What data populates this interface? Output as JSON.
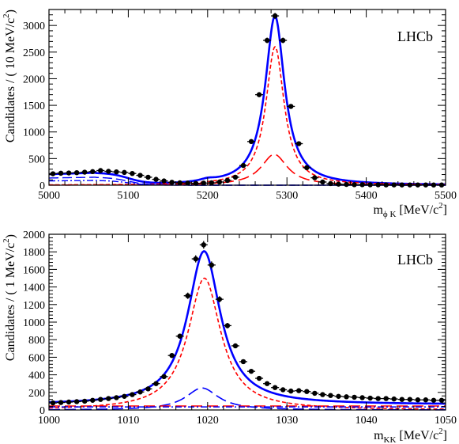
{
  "chart_data": [
    {
      "type": "line",
      "experiment_label": "LHCb",
      "xlabel": {
        "main": "m",
        "sub": "ϕ K",
        "unit_pre": "[MeV/c",
        "unit_sup": "2",
        "unit_post": "]"
      },
      "ylabel": {
        "pre": "Candidates / ( 10 MeV/c",
        "sup": "2",
        "post": ")"
      },
      "xlim": [
        5000,
        5500
      ],
      "ylim": [
        0,
        3300
      ],
      "xticks": [
        5000,
        5100,
        5200,
        5300,
        5400,
        5500
      ],
      "yticks": [
        0,
        500,
        1000,
        1500,
        2000,
        2500,
        3000
      ],
      "data_points": {
        "x": [
          5005,
          5015,
          5025,
          5035,
          5045,
          5055,
          5065,
          5075,
          5085,
          5095,
          5105,
          5115,
          5125,
          5135,
          5145,
          5155,
          5165,
          5175,
          5185,
          5195,
          5205,
          5215,
          5225,
          5235,
          5245,
          5255,
          5265,
          5275,
          5285,
          5295,
          5305,
          5315,
          5325,
          5335,
          5345,
          5355,
          5365,
          5375,
          5385,
          5395,
          5405,
          5415,
          5425,
          5435,
          5445,
          5455,
          5465,
          5475,
          5485,
          5495
        ],
        "y": [
          215,
          225,
          230,
          235,
          245,
          255,
          275,
          260,
          250,
          240,
          220,
          185,
          150,
          110,
          80,
          55,
          45,
          40,
          35,
          40,
          45,
          60,
          90,
          150,
          370,
          820,
          1700,
          2720,
          3180,
          2720,
          1480,
          780,
          330,
          140,
          60,
          30,
          20,
          15,
          10,
          10,
          8,
          8,
          6,
          6,
          5,
          5,
          5,
          5,
          4,
          4
        ],
        "yerr": [
          15,
          15,
          15,
          15,
          16,
          16,
          17,
          16,
          16,
          16,
          15,
          14,
          12,
          11,
          9,
          8,
          7,
          7,
          6,
          7,
          7,
          8,
          10,
          12,
          19,
          29,
          41,
          52,
          56,
          52,
          39,
          28,
          18,
          12,
          8,
          6,
          5,
          4,
          3,
          3,
          3,
          3,
          3,
          3,
          2,
          2,
          2,
          2,
          2,
          2
        ]
      },
      "components": [
        {
          "style": "total",
          "color": "#0000ff",
          "dash": "",
          "width": 2.6,
          "model": {
            "base": 0,
            "peaks": [
              {
                "A": 2600,
                "mu": 5285,
                "s": 14
              },
              {
                "A": 580,
                "mu": 5284,
                "s": 20
              },
              {
                "A": 42,
                "mu": 5200,
                "s": 12
              }
            ],
            "bumps": [
              {
                "A": 220,
                "mu": 5060,
                "s": 55,
                "tail": 5100
              }
            ]
          }
        },
        {
          "style": "signal-narrow",
          "color": "#ff0000",
          "dash": "5,3",
          "width": 1.6,
          "model": {
            "base": 0,
            "peaks": [
              {
                "A": 2600,
                "mu": 5285,
                "s": 14
              }
            ],
            "bumps": []
          }
        },
        {
          "style": "signal-wide",
          "color": "#ff0000",
          "dash": "14,6",
          "width": 1.6,
          "model": {
            "base": 0,
            "peaks": [
              {
                "A": 580,
                "mu": 5284,
                "s": 20
              }
            ],
            "bumps": []
          }
        },
        {
          "style": "background-a",
          "color": "#0000ff",
          "dash": "12,5",
          "width": 1.4,
          "model": {
            "base": 0,
            "peaks": [],
            "bumps": [
              {
                "A": 150,
                "mu": 5060,
                "s": 55,
                "tail": 5100
              }
            ]
          }
        },
        {
          "style": "background-b",
          "color": "#0000ff",
          "dash": "8,3,2,3",
          "width": 1.4,
          "model": {
            "base": 0,
            "peaks": [],
            "bumps": [
              {
                "A": 90,
                "mu": 5060,
                "s": 55,
                "tail": 5100
              }
            ]
          }
        }
      ]
    },
    {
      "type": "line",
      "experiment_label": "LHCb",
      "xlabel": {
        "main": "m",
        "sub": "KK",
        "unit_pre": "[MeV/c",
        "unit_sup": "2",
        "unit_post": "]"
      },
      "ylabel": {
        "pre": "Candidates / ( 1 MeV/c",
        "sup": "2",
        "post": ")"
      },
      "xlim": [
        1000,
        1050
      ],
      "ylim": [
        0,
        2000
      ],
      "xticks": [
        1000,
        1010,
        1020,
        1030,
        1040,
        1050
      ],
      "yticks": [
        0,
        200,
        400,
        600,
        800,
        1000,
        1200,
        1400,
        1600,
        1800,
        2000
      ],
      "data_points": {
        "x": [
          1000.5,
          1001.5,
          1002.5,
          1003.5,
          1004.5,
          1005.5,
          1006.5,
          1007.5,
          1008.5,
          1009.5,
          1010.5,
          1011.5,
          1012.5,
          1013.5,
          1014.5,
          1015.5,
          1016.5,
          1017.5,
          1018.5,
          1019.5,
          1020.5,
          1021.5,
          1022.5,
          1023.5,
          1024.5,
          1025.5,
          1026.5,
          1027.5,
          1028.5,
          1029.5,
          1030.5,
          1031.5,
          1032.5,
          1033.5,
          1034.5,
          1035.5,
          1036.5,
          1037.5,
          1038.5,
          1039.5,
          1040.5,
          1041.5,
          1042.5,
          1043.5,
          1044.5,
          1045.5,
          1046.5,
          1047.5,
          1048.5,
          1049.5
        ],
        "y": [
          80,
          85,
          90,
          95,
          100,
          110,
          120,
          130,
          140,
          155,
          175,
          205,
          240,
          300,
          380,
          620,
          840,
          1300,
          1720,
          1880,
          1650,
          1260,
          960,
          730,
          550,
          440,
          360,
          300,
          255,
          230,
          215,
          220,
          210,
          190,
          175,
          165,
          155,
          150,
          145,
          140,
          135,
          130,
          130,
          125,
          120,
          120,
          115,
          115,
          110,
          110
        ],
        "yerr": [
          9,
          9,
          9,
          10,
          10,
          10,
          11,
          11,
          12,
          12,
          13,
          14,
          15,
          17,
          19,
          25,
          29,
          36,
          41,
          43,
          41,
          35,
          31,
          27,
          23,
          21,
          19,
          17,
          16,
          15,
          15,
          15,
          14,
          14,
          13,
          13,
          12,
          12,
          12,
          12,
          12,
          11,
          11,
          11,
          11,
          11,
          11,
          11,
          10,
          10
        ]
      },
      "components": [
        {
          "style": "total",
          "color": "#0000ff",
          "dash": "",
          "width": 2.6,
          "model": {
            "base": 60,
            "peaks": [
              {
                "A": 1500,
                "mu": 1019.6,
                "s": 2.5
              },
              {
                "A": 250,
                "mu": 1019.3,
                "s": 2.5
              }
            ],
            "bumps": []
          }
        },
        {
          "style": "signal-narrow",
          "color": "#ff0000",
          "dash": "5,3",
          "width": 1.6,
          "model": {
            "base": 0,
            "peaks": [
              {
                "A": 1500,
                "mu": 1019.6,
                "s": 2.5
              }
            ],
            "bumps": []
          }
        },
        {
          "style": "signal-wide",
          "color": "#0000ff",
          "dash": "14,6",
          "width": 1.6,
          "model": {
            "base": 0,
            "peaks": [
              {
                "A": 250,
                "mu": 1019.3,
                "s": 2.5
              }
            ],
            "bumps": []
          }
        },
        {
          "style": "background-a",
          "color": "#ff0000",
          "dash": "14,6",
          "width": 1.4,
          "model": {
            "base": 45,
            "peaks": [],
            "bumps": []
          }
        },
        {
          "style": "background-b",
          "color": "#0000ff",
          "dash": "8,3,2,3",
          "width": 1.4,
          "model": {
            "base": 35,
            "peaks": [],
            "bumps": []
          }
        }
      ]
    }
  ]
}
